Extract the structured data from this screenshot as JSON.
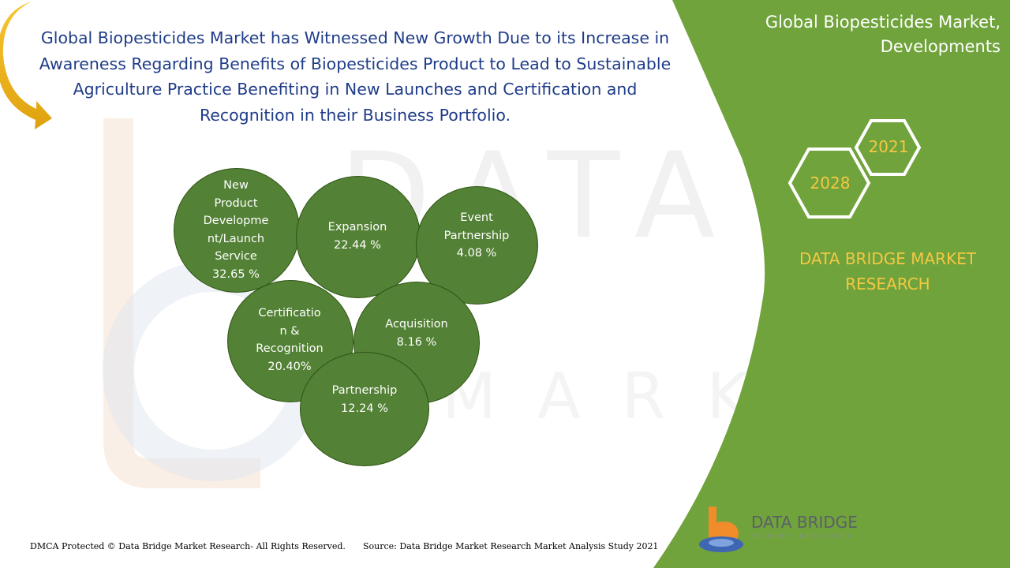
{
  "headline": {
    "lines": [
      "Global Biopesticides Market has Witnessed New Growth Due to its Increase in",
      "Awareness Regarding Benefits of Biopesticides Product to Lead to Sustainable",
      "Agriculture Practice Benefiting in New Launches and Certification and",
      "Recognition in their Business Portfolio."
    ]
  },
  "panel": {
    "title_line1": "Global Biopesticides Market,",
    "title_line2": "Developments",
    "year_start": "2021",
    "year_end": "2028",
    "brand_line1": "DATA BRIDGE MARKET",
    "brand_line2": "RESEARCH"
  },
  "bubbles": [
    {
      "lines": [
        "New",
        "Product",
        "Developme",
        "nt/Launch",
        "Service"
      ],
      "value": "32.65 %"
    },
    {
      "lines": [
        "Expansion"
      ],
      "value": "22.44 %"
    },
    {
      "lines": [
        "Event",
        "Partnership"
      ],
      "value": "4.08 %"
    },
    {
      "lines": [
        "Certificatio",
        "n &",
        "Recognition"
      ],
      "value": "20.40%"
    },
    {
      "lines": [
        "Acquisition"
      ],
      "value": "8.16 %"
    },
    {
      "lines": [
        "Partnership"
      ],
      "value": "12.24 %"
    }
  ],
  "footer": {
    "copyright": "DMCA Protected © Data Bridge Market Research- All Rights Reserved.",
    "source": "Source: Data Bridge Market Research Market Analysis Study 2021"
  },
  "logo": {
    "name": "DATA BRIDGE",
    "tagline": "MARKET RESEARCH"
  },
  "colors": {
    "panel_green": "#70a33b",
    "bubble_green": "#538135",
    "accent_yellow": "#f3c843",
    "headline_blue": "#1f3c88",
    "logo_orange": "#f08c2a"
  }
}
